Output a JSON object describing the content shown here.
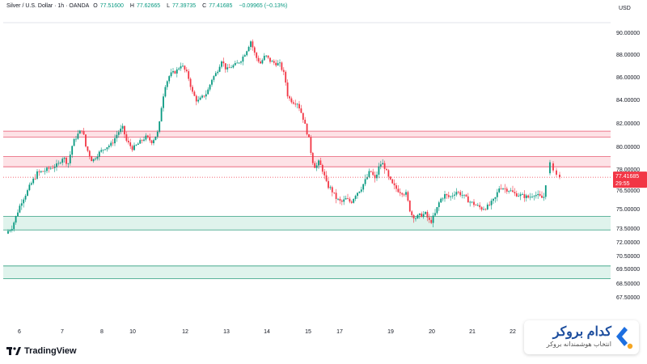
{
  "header": {
    "symbol": "Silver / U.S. Dollar · 1h · OANDA",
    "open_label": "O",
    "open": "77.51600",
    "high_label": "H",
    "high": "77.62665",
    "low_label": "L",
    "low": "77.39735",
    "close_label": "C",
    "close": "77.41685",
    "change": "−0.09965 (−0.13%)"
  },
  "currency": "USD",
  "last_price": {
    "value": "77.41685",
    "countdown": "29:55"
  },
  "footer": {
    "tradingview_logo": "TradingView"
  },
  "brand": {
    "title": "کدام بروکر",
    "subtitle": "انتخاب هوشمندانه بروکر",
    "icon": "kadambroker-logo-icon"
  },
  "colors": {
    "up": "#089981",
    "down": "#f23645",
    "resistance_fill": "#fde2e6",
    "resistance_line": "#e7566e",
    "support_fill": "#dff3ec",
    "support_line": "#2e9e7e"
  },
  "chart_data": {
    "type": "candlestick",
    "y_ticks": [
      90.0,
      88.0,
      86.0,
      84.0,
      82.0,
      80.0,
      78.0,
      76.5,
      75.0,
      73.5,
      72.0,
      70.5,
      69.5,
      68.5,
      67.5
    ],
    "y_tick_labels": [
      "90.00000",
      "88.00000",
      "86.00000",
      "84.00000",
      "82.00000",
      "80.00000",
      "78.00000",
      "76.50000",
      "75.00000",
      "73.50000",
      "72.00000",
      "70.50000",
      "69.50000",
      "68.50000",
      "67.50000"
    ],
    "x_labels": [
      "6",
      "7",
      "8",
      "10",
      "12",
      "13",
      "14",
      "15",
      "17",
      "19",
      "20",
      "21",
      "22"
    ],
    "zones": [
      {
        "type": "resistance",
        "low": 80.8,
        "high": 81.3
      },
      {
        "type": "resistance",
        "low": 78.2,
        "high": 79.1
      },
      {
        "type": "support",
        "low": 73.3,
        "high": 74.4
      },
      {
        "type": "support",
        "low": 68.8,
        "high": 69.7
      }
    ],
    "last_price": 77.41685,
    "price_path": [
      [
        0,
        72.9
      ],
      [
        10,
        73.4
      ],
      [
        22,
        75.5
      ],
      [
        34,
        76.9
      ],
      [
        42,
        77.7
      ],
      [
        52,
        77.9
      ],
      [
        62,
        78.2
      ],
      [
        68,
        78.4
      ],
      [
        74,
        79.1
      ],
      [
        80,
        78.4
      ],
      [
        86,
        80.3
      ],
      [
        92,
        81.0
      ],
      [
        98,
        81.5
      ],
      [
        102,
        80.0
      ],
      [
        110,
        78.7
      ],
      [
        118,
        79.4
      ],
      [
        126,
        79.9
      ],
      [
        134,
        80.2
      ],
      [
        142,
        81.2
      ],
      [
        148,
        81.6
      ],
      [
        152,
        80.5
      ],
      [
        160,
        79.8
      ],
      [
        168,
        80.3
      ],
      [
        176,
        80.8
      ],
      [
        184,
        80.4
      ],
      [
        192,
        81.3
      ],
      [
        196,
        83.6
      ],
      [
        200,
        85.2
      ],
      [
        206,
        86.2
      ],
      [
        214,
        86.5
      ],
      [
        220,
        87.1
      ],
      [
        228,
        86.2
      ],
      [
        234,
        84.6
      ],
      [
        240,
        83.8
      ],
      [
        246,
        84.2
      ],
      [
        252,
        84.6
      ],
      [
        258,
        85.8
      ],
      [
        264,
        86.4
      ],
      [
        270,
        87.5
      ],
      [
        276,
        86.6
      ],
      [
        282,
        86.9
      ],
      [
        288,
        87.1
      ],
      [
        294,
        87.5
      ],
      [
        300,
        88.2
      ],
      [
        306,
        89.2
      ],
      [
        312,
        87.8
      ],
      [
        318,
        87.2
      ],
      [
        324,
        87.9
      ],
      [
        330,
        87.4
      ],
      [
        336,
        87.2
      ],
      [
        342,
        87.1
      ],
      [
        348,
        86.1
      ],
      [
        352,
        84.2
      ],
      [
        358,
        83.8
      ],
      [
        364,
        83.7
      ],
      [
        370,
        82.6
      ],
      [
        374,
        81.6
      ],
      [
        378,
        80.6
      ],
      [
        382,
        78.8
      ],
      [
        386,
        78.1
      ],
      [
        390,
        78.6
      ],
      [
        394,
        78.1
      ],
      [
        400,
        76.9
      ],
      [
        406,
        76.5
      ],
      [
        412,
        75.8
      ],
      [
        418,
        75.5
      ],
      [
        424,
        75.8
      ],
      [
        430,
        75.5
      ],
      [
        436,
        76.2
      ],
      [
        442,
        76.6
      ],
      [
        448,
        77.2
      ],
      [
        454,
        77.9
      ],
      [
        460,
        77.2
      ],
      [
        464,
        78.1
      ],
      [
        468,
        78.6
      ],
      [
        472,
        78.1
      ],
      [
        476,
        77.4
      ],
      [
        482,
        76.8
      ],
      [
        490,
        76.4
      ],
      [
        498,
        76.2
      ],
      [
        504,
        74.6
      ],
      [
        510,
        74.3
      ],
      [
        516,
        74.5
      ],
      [
        522,
        74.6
      ],
      [
        528,
        73.9
      ],
      [
        534,
        74.6
      ],
      [
        540,
        75.7
      ],
      [
        546,
        76.1
      ],
      [
        552,
        75.9
      ],
      [
        560,
        76.4
      ],
      [
        568,
        76.1
      ],
      [
        576,
        75.6
      ],
      [
        584,
        75.3
      ],
      [
        592,
        75.0
      ],
      [
        600,
        75.2
      ],
      [
        608,
        75.8
      ],
      [
        614,
        76.8
      ],
      [
        620,
        76.6
      ],
      [
        626,
        76.5
      ],
      [
        632,
        76.2
      ],
      [
        638,
        76.1
      ],
      [
        644,
        76.0
      ],
      [
        650,
        75.9
      ],
      [
        656,
        76.2
      ],
      [
        662,
        76.0
      ],
      [
        668,
        75.8
      ],
      [
        672,
        77.5
      ],
      [
        676,
        78.6
      ],
      [
        680,
        78.1
      ],
      [
        684,
        77.8
      ],
      [
        688,
        77.6
      ],
      [
        690,
        77.42
      ]
    ]
  }
}
